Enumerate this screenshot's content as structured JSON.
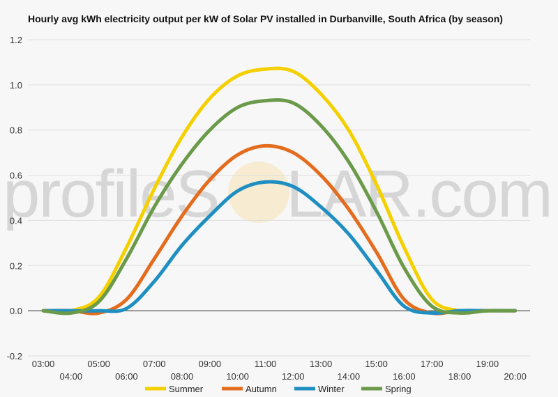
{
  "chart_data": {
    "type": "line",
    "title": "Hourly avg kWh electricity output per kW of Solar PV installed in Durbanville, South Africa (by season)",
    "xlabel": "",
    "ylabel": "",
    "x": [
      "03:00",
      "04:00",
      "05:00",
      "06:00",
      "07:00",
      "08:00",
      "09:00",
      "10:00",
      "11:00",
      "12:00",
      "13:00",
      "14:00",
      "15:00",
      "16:00",
      "17:00",
      "18:00",
      "19:00",
      "20:00"
    ],
    "ylim": [
      -0.2,
      1.2
    ],
    "yticks": [
      "-0.2",
      "0.0",
      "0.2",
      "0.4",
      "0.6",
      "0.8",
      "1.0",
      "1.2"
    ],
    "grid": true,
    "legend_position": "bottom",
    "watermark": {
      "left": "profileS",
      "right": "LAR.com"
    },
    "series": [
      {
        "name": "Summer",
        "color": "#f5d000",
        "values": [
          0,
          0,
          0.06,
          0.28,
          0.54,
          0.77,
          0.94,
          1.04,
          1.07,
          1.06,
          0.96,
          0.8,
          0.56,
          0.28,
          0.05,
          0,
          0,
          0
        ]
      },
      {
        "name": "Autumn",
        "color": "#e36c1e",
        "values": [
          0,
          0,
          -0.01,
          0.05,
          0.23,
          0.42,
          0.58,
          0.69,
          0.73,
          0.7,
          0.6,
          0.45,
          0.26,
          0.05,
          -0.01,
          0,
          0,
          0
        ]
      },
      {
        "name": "Winter",
        "color": "#1f8fc2",
        "values": [
          0,
          0,
          0,
          0.01,
          0.13,
          0.29,
          0.42,
          0.53,
          0.57,
          0.55,
          0.46,
          0.34,
          0.18,
          0.02,
          -0.01,
          0,
          0,
          0
        ]
      },
      {
        "name": "Spring",
        "color": "#6b9a4a",
        "values": [
          0,
          -0.01,
          0.04,
          0.23,
          0.46,
          0.65,
          0.8,
          0.9,
          0.93,
          0.92,
          0.82,
          0.66,
          0.44,
          0.19,
          0.02,
          -0.01,
          0,
          0
        ]
      }
    ]
  }
}
